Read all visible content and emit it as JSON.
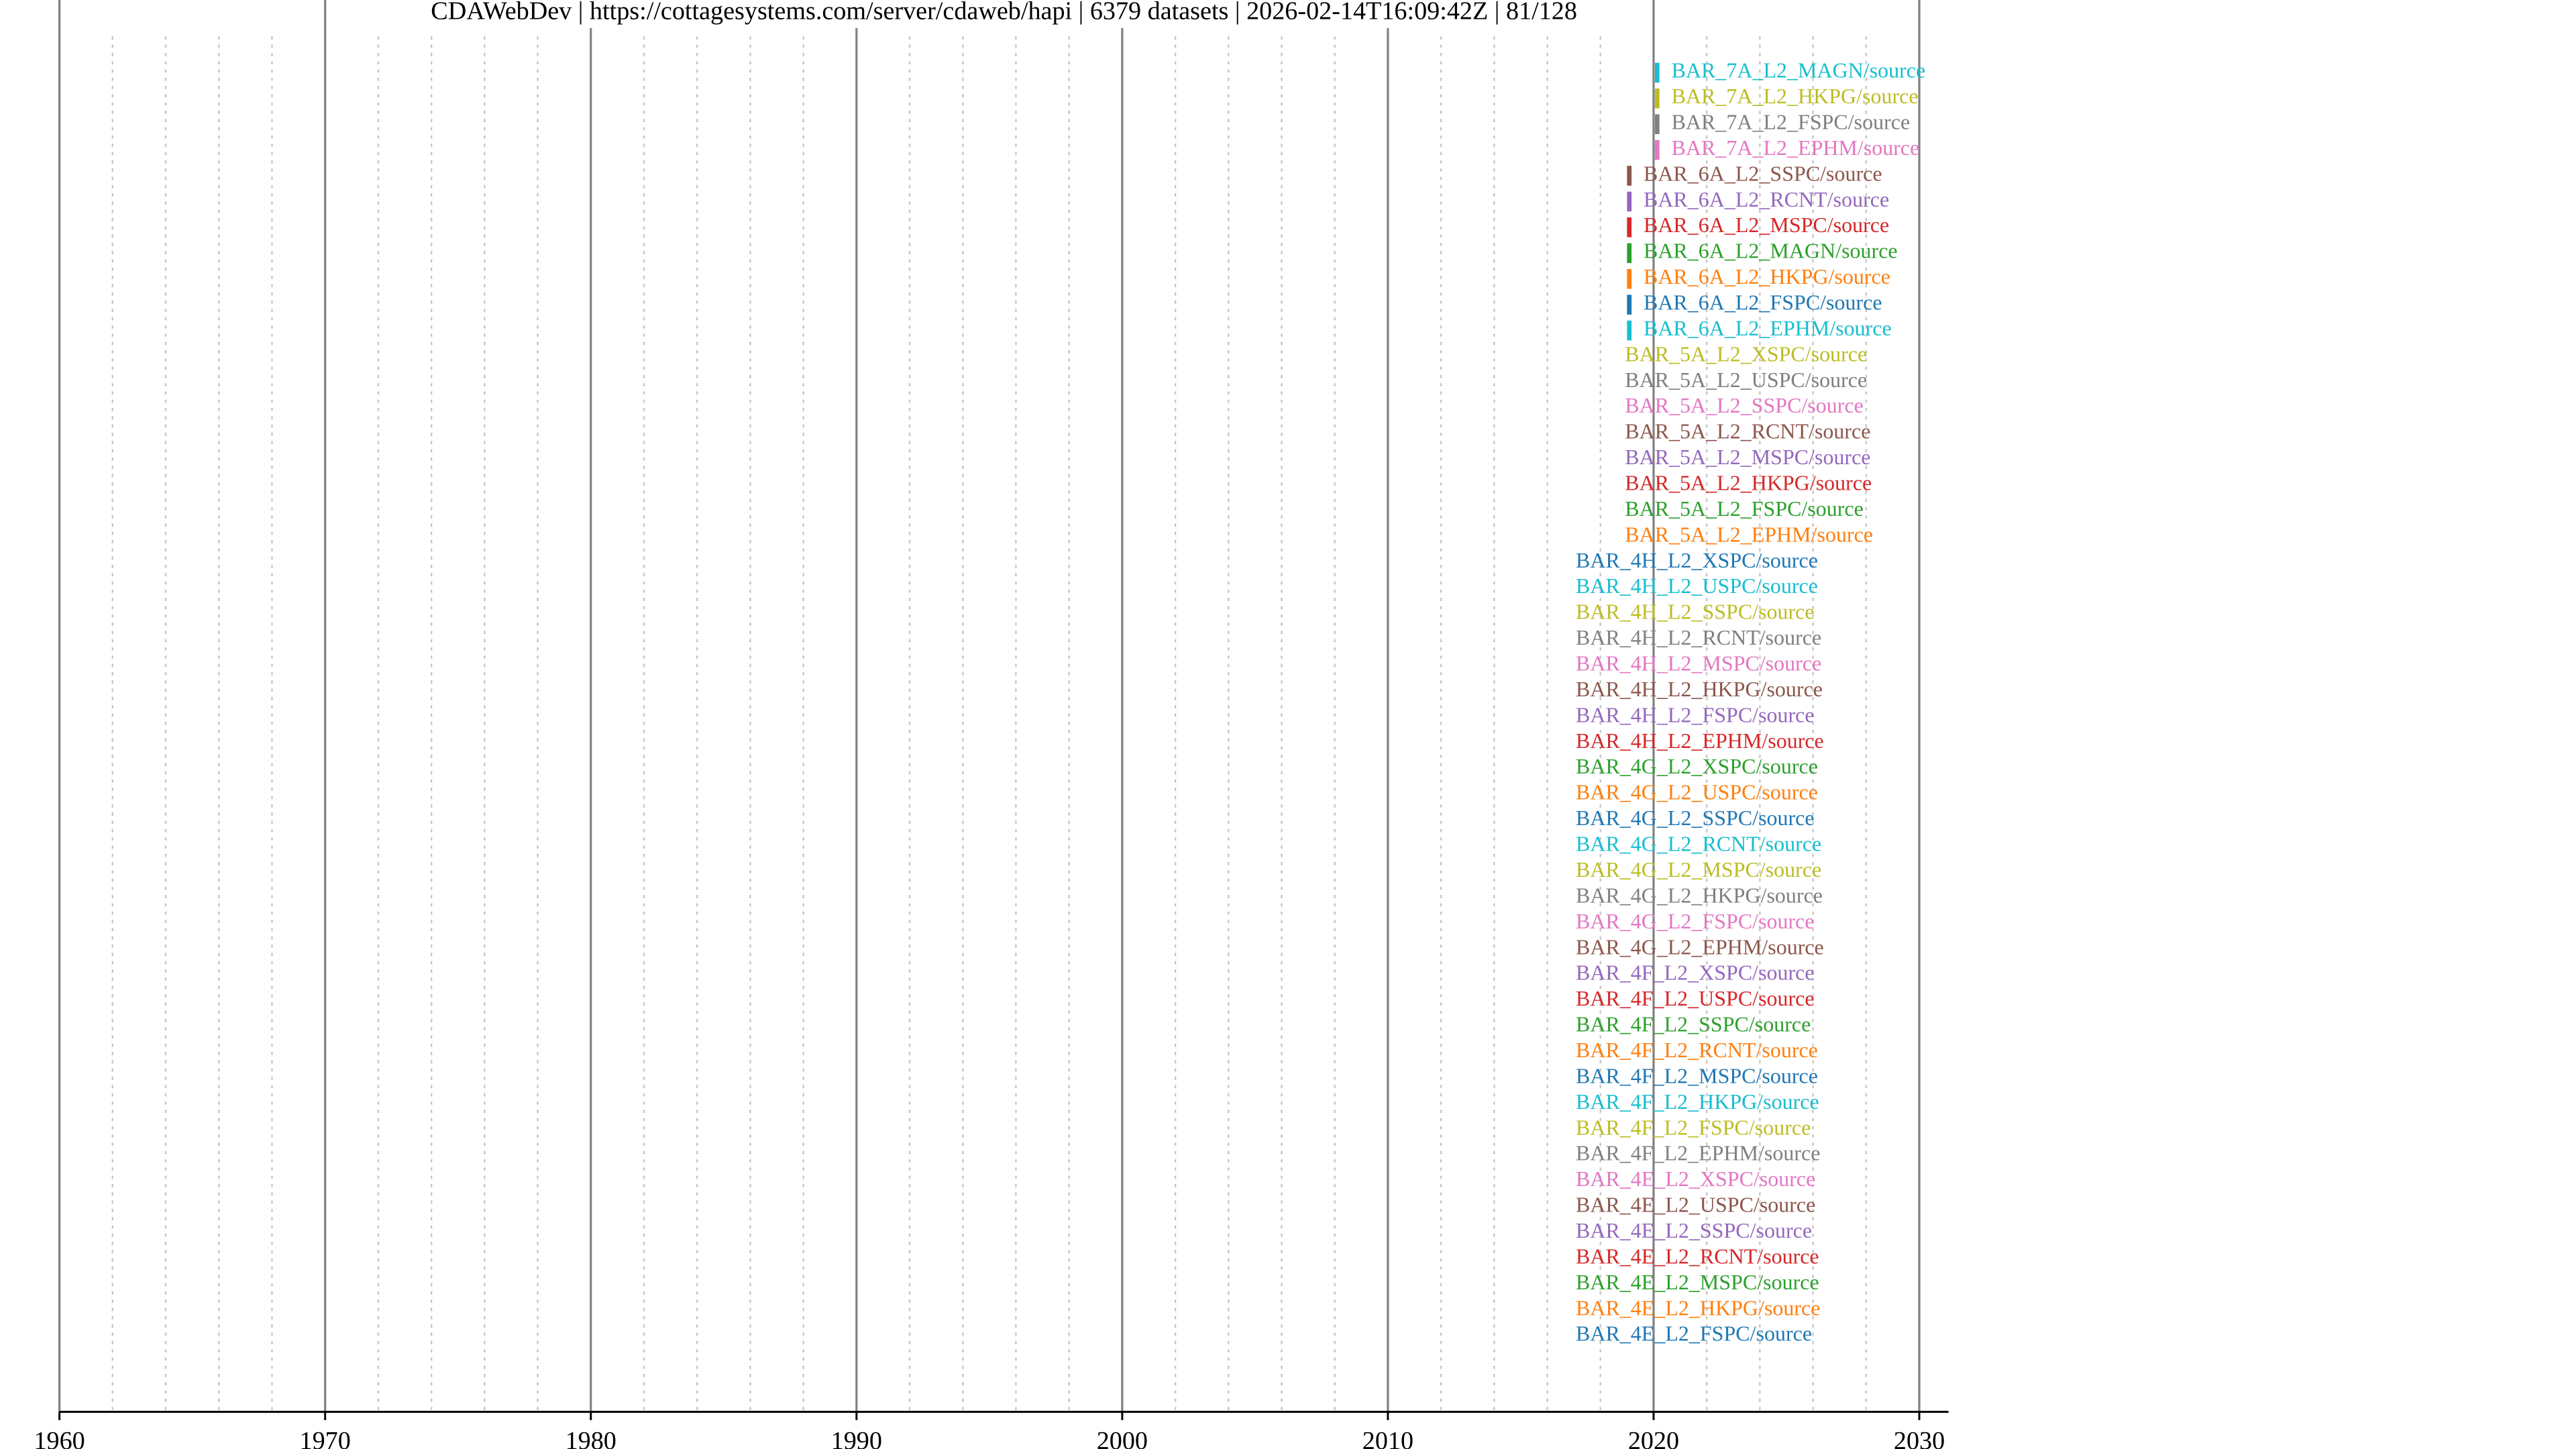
{
  "chart_data": {
    "type": "timeline",
    "title": "CDAWebDev | https://cottagesystems.com/server/cdaweb/hapi | 6379 datasets | 2026-02-14T16:09:42Z | 81/128",
    "xlim": [
      1960,
      2031.1
    ],
    "xticks": [
      1960,
      1970,
      1980,
      1990,
      2000,
      2010,
      2020,
      2030
    ],
    "xminorticks": [
      1962,
      1964,
      1966,
      1968,
      1972,
      1974,
      1976,
      1978,
      1982,
      1984,
      1986,
      1988,
      1992,
      1994,
      1996,
      1998,
      2002,
      2004,
      2006,
      2008,
      2012,
      2014,
      2016,
      2018,
      2022,
      2024,
      2026,
      2028
    ],
    "datasets": [
      {
        "name": "BAR_7A_L2_MAGN/source",
        "color": "#17becf",
        "start": 2020.05,
        "end": 2020.22
      },
      {
        "name": "BAR_7A_L2_HKPG/source",
        "color": "#bcbd22",
        "start": 2020.05,
        "end": 2020.22
      },
      {
        "name": "BAR_7A_L2_FSPC/source",
        "color": "#7f7f7f",
        "start": 2020.05,
        "end": 2020.22
      },
      {
        "name": "BAR_7A_L2_EPHM/source",
        "color": "#e377c2",
        "start": 2020.05,
        "end": 2020.22
      },
      {
        "name": "BAR_6A_L2_SSPC/source",
        "color": "#8c564b",
        "start": 2019.0,
        "end": 2019.17
      },
      {
        "name": "BAR_6A_L2_RCNT/source",
        "color": "#9467bd",
        "start": 2019.0,
        "end": 2019.17
      },
      {
        "name": "BAR_6A_L2_MSPC/source",
        "color": "#d62728",
        "start": 2019.0,
        "end": 2019.17
      },
      {
        "name": "BAR_6A_L2_MAGN/source",
        "color": "#2ca02c",
        "start": 2019.0,
        "end": 2019.17
      },
      {
        "name": "BAR_6A_L2_HKPG/source",
        "color": "#ff7f0e",
        "start": 2019.0,
        "end": 2019.17
      },
      {
        "name": "BAR_6A_L2_FSPC/source",
        "color": "#1f77b4",
        "start": 2019.0,
        "end": 2019.17
      },
      {
        "name": "BAR_6A_L2_EPHM/source",
        "color": "#17becf",
        "start": 2019.0,
        "end": 2019.17
      },
      {
        "name": "BAR_5A_L2_XSPC/source",
        "color": "#bcbd22",
        "start": 2018.3,
        "end": 2018.3
      },
      {
        "name": "BAR_5A_L2_USPC/source",
        "color": "#7f7f7f",
        "start": 2018.3,
        "end": 2018.3
      },
      {
        "name": "BAR_5A_L2_SSPC/source",
        "color": "#e377c2",
        "start": 2018.3,
        "end": 2018.3
      },
      {
        "name": "BAR_5A_L2_RCNT/source",
        "color": "#8c564b",
        "start": 2018.3,
        "end": 2018.3
      },
      {
        "name": "BAR_5A_L2_MSPC/source",
        "color": "#9467bd",
        "start": 2018.3,
        "end": 2018.3
      },
      {
        "name": "BAR_5A_L2_HKPG/source",
        "color": "#d62728",
        "start": 2018.3,
        "end": 2018.3
      },
      {
        "name": "BAR_5A_L2_FSPC/source",
        "color": "#2ca02c",
        "start": 2018.3,
        "end": 2018.3
      },
      {
        "name": "BAR_5A_L2_EPHM/source",
        "color": "#ff7f0e",
        "start": 2018.3,
        "end": 2018.3
      },
      {
        "name": "BAR_4H_L2_XSPC/source",
        "color": "#1f77b4",
        "start": 2016.45,
        "end": 2016.45
      },
      {
        "name": "BAR_4H_L2_USPC/source",
        "color": "#17becf",
        "start": 2016.45,
        "end": 2016.45
      },
      {
        "name": "BAR_4H_L2_SSPC/source",
        "color": "#bcbd22",
        "start": 2016.45,
        "end": 2016.45
      },
      {
        "name": "BAR_4H_L2_RCNT/source",
        "color": "#7f7f7f",
        "start": 2016.45,
        "end": 2016.45
      },
      {
        "name": "BAR_4H_L2_MSPC/source",
        "color": "#e377c2",
        "start": 2016.45,
        "end": 2016.45
      },
      {
        "name": "BAR_4H_L2_HKPG/source",
        "color": "#8c564b",
        "start": 2016.45,
        "end": 2016.45
      },
      {
        "name": "BAR_4H_L2_FSPC/source",
        "color": "#9467bd",
        "start": 2016.45,
        "end": 2016.45
      },
      {
        "name": "BAR_4H_L2_EPHM/source",
        "color": "#d62728",
        "start": 2016.45,
        "end": 2016.45
      },
      {
        "name": "BAR_4G_L2_XSPC/source",
        "color": "#2ca02c",
        "start": 2016.45,
        "end": 2016.45
      },
      {
        "name": "BAR_4G_L2_USPC/source",
        "color": "#ff7f0e",
        "start": 2016.45,
        "end": 2016.45
      },
      {
        "name": "BAR_4G_L2_SSPC/source",
        "color": "#1f77b4",
        "start": 2016.45,
        "end": 2016.45
      },
      {
        "name": "BAR_4G_L2_RCNT/source",
        "color": "#17becf",
        "start": 2016.45,
        "end": 2016.45
      },
      {
        "name": "BAR_4G_L2_MSPC/source",
        "color": "#bcbd22",
        "start": 2016.45,
        "end": 2016.45
      },
      {
        "name": "BAR_4G_L2_HKPG/source",
        "color": "#7f7f7f",
        "start": 2016.45,
        "end": 2016.45
      },
      {
        "name": "BAR_4G_L2_FSPC/source",
        "color": "#e377c2",
        "start": 2016.45,
        "end": 2016.45
      },
      {
        "name": "BAR_4G_L2_EPHM/source",
        "color": "#8c564b",
        "start": 2016.45,
        "end": 2016.45
      },
      {
        "name": "BAR_4F_L2_XSPC/source",
        "color": "#9467bd",
        "start": 2016.45,
        "end": 2016.45
      },
      {
        "name": "BAR_4F_L2_USPC/source",
        "color": "#d62728",
        "start": 2016.45,
        "end": 2016.45
      },
      {
        "name": "BAR_4F_L2_SSPC/source",
        "color": "#2ca02c",
        "start": 2016.45,
        "end": 2016.45
      },
      {
        "name": "BAR_4F_L2_RCNT/source",
        "color": "#ff7f0e",
        "start": 2016.45,
        "end": 2016.45
      },
      {
        "name": "BAR_4F_L2_MSPC/source",
        "color": "#1f77b4",
        "start": 2016.45,
        "end": 2016.45
      },
      {
        "name": "BAR_4F_L2_HKPG/source",
        "color": "#17becf",
        "start": 2016.45,
        "end": 2016.45
      },
      {
        "name": "BAR_4F_L2_FSPC/source",
        "color": "#bcbd22",
        "start": 2016.45,
        "end": 2016.45
      },
      {
        "name": "BAR_4F_L2_EPHM/source",
        "color": "#7f7f7f",
        "start": 2016.45,
        "end": 2016.45
      },
      {
        "name": "BAR_4E_L2_XSPC/source",
        "color": "#e377c2",
        "start": 2016.45,
        "end": 2016.45
      },
      {
        "name": "BAR_4E_L2_USPC/source",
        "color": "#8c564b",
        "start": 2016.45,
        "end": 2016.45
      },
      {
        "name": "BAR_4E_L2_SSPC/source",
        "color": "#9467bd",
        "start": 2016.45,
        "end": 2016.45
      },
      {
        "name": "BAR_4E_L2_RCNT/source",
        "color": "#d62728",
        "start": 2016.45,
        "end": 2016.45
      },
      {
        "name": "BAR_4E_L2_MSPC/source",
        "color": "#2ca02c",
        "start": 2016.45,
        "end": 2016.45
      },
      {
        "name": "BAR_4E_L2_HKPG/source",
        "color": "#ff7f0e",
        "start": 2016.45,
        "end": 2016.45
      },
      {
        "name": "BAR_4E_L2_FSPC/source",
        "color": "#1f77b4",
        "start": 2016.45,
        "end": 2016.45
      }
    ]
  }
}
